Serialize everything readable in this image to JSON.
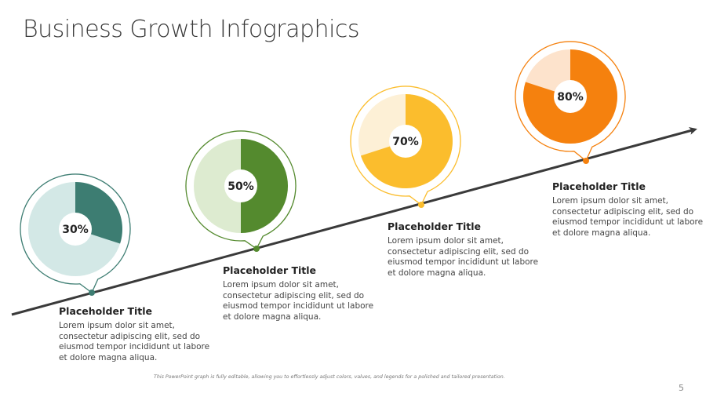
{
  "slide": {
    "title": "Business Growth Infographics",
    "footnote": "This PowerPoint graph is fully editable, allowing you to effortlessly adjust colors, values, and legends for a polished and tailored presentation.",
    "page_number": "5"
  },
  "steps": [
    {
      "label": "30%",
      "value": 30,
      "color": "#3d7d72",
      "light": "#d3e8e6",
      "title": "Placeholder Title",
      "text": "Lorem ipsum dolor sit amet, consectetur adipiscing elit, sed do eiusmod tempor incididunt ut labore et dolore magna aliqua."
    },
    {
      "label": "50%",
      "value": 50,
      "color": "#548a2e",
      "light": "#ddebd0",
      "title": "Placeholder Title",
      "text": "Lorem ipsum dolor sit amet, consectetur adipiscing elit, sed do eiusmod tempor incididunt ut labore et dolore magna aliqua."
    },
    {
      "label": "70%",
      "value": 70,
      "color": "#fbbd2d",
      "light": "#fdf0d6",
      "title": "Placeholder Title",
      "text": "Lorem ipsum dolor sit amet, consectetur adipiscing elit, sed do eiusmod tempor incididunt ut labore et dolore magna aliqua."
    },
    {
      "label": "80%",
      "value": 80,
      "color": "#f5810e",
      "light": "#fde3cc",
      "title": "Placeholder Title",
      "text": "Lorem ipsum dolor sit amet, consectetur adipiscing elit, sed do eiusmod tempor incididunt ut labore et dolore magna aliqua."
    }
  ],
  "chart_data": {
    "type": "pie",
    "title": "Business Growth Infographics",
    "categories": [
      "Placeholder Title",
      "Placeholder Title",
      "Placeholder Title",
      "Placeholder Title"
    ],
    "values": [
      30,
      50,
      70,
      80
    ],
    "labels": [
      "30%",
      "50%",
      "70%",
      "80%"
    ],
    "colors": [
      "#3d7d72",
      "#548a2e",
      "#fbbd2d",
      "#f5810e"
    ],
    "notes": "Four donut gauges placed along an upward-trending arrow, each showing a percentage of completion."
  }
}
